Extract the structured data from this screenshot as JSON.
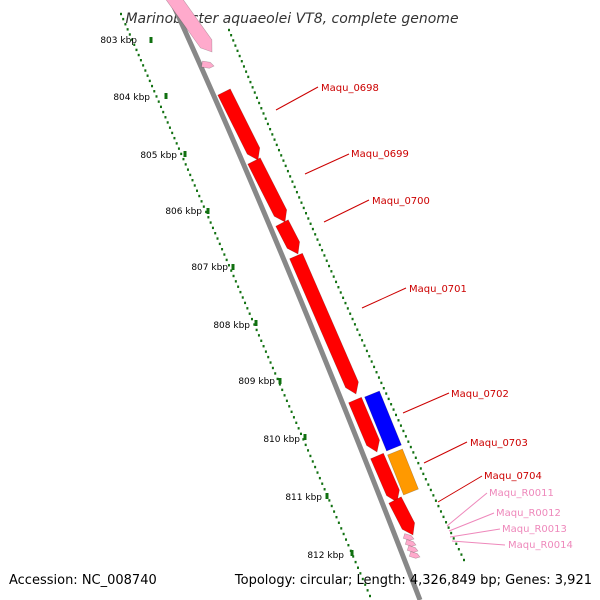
{
  "title": "Marinobacter aquaeolei VT8, complete genome",
  "accession_text": "Accession: NC_008740",
  "summary_text": "Topology: circular; Length: 4,326,849 bp; Genes: 3,921",
  "colors": {
    "axis": "#888888",
    "tick": "#107010",
    "gene_red": "#ff0000",
    "gene_blue": "#0000ff",
    "gene_orange": "#ff9900",
    "gene_pink": "#ffaacc",
    "label_red": "#cc0000",
    "label_pink": "#ee88bb"
  },
  "position_marks": [
    "803 kbp",
    "804 kbp",
    "805 kbp",
    "806 kbp",
    "807 kbp",
    "808 kbp",
    "809 kbp",
    "810 kbp",
    "811 kbp",
    "812 kbp"
  ],
  "genes": [
    {
      "name": "Maqu_0698",
      "color": "red"
    },
    {
      "name": "Maqu_0699",
      "color": "red"
    },
    {
      "name": "Maqu_0700",
      "color": "red"
    },
    {
      "name": "Maqu_0701",
      "color": "red"
    },
    {
      "name": "Maqu_0702",
      "color": "red"
    },
    {
      "name": "Maqu_0703",
      "color": "red"
    },
    {
      "name": "Maqu_0704",
      "color": "red"
    },
    {
      "name": "Maqu_R0011",
      "color": "pink"
    },
    {
      "name": "Maqu_R0012",
      "color": "pink"
    },
    {
      "name": "Maqu_R0013",
      "color": "pink"
    },
    {
      "name": "Maqu_R0014",
      "color": "pink"
    }
  ]
}
